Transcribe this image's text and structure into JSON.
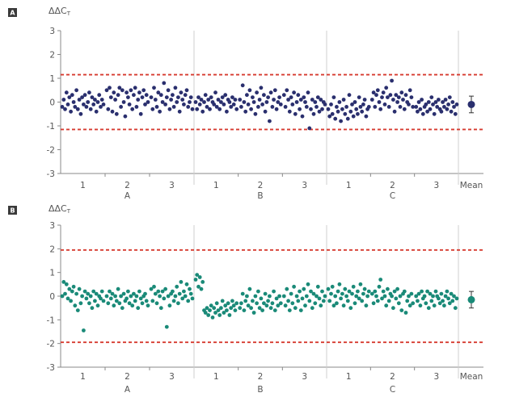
{
  "chart_data": [
    {
      "type": "scatter",
      "panel_label": "A",
      "ylabel": "ΔΔCT",
      "ylabel_main": "ΔΔC",
      "ylabel_sub": "T",
      "ylim": [
        -3,
        3
      ],
      "yticks": [
        -3,
        -2,
        -1,
        0,
        1,
        2,
        3
      ],
      "threshold_lines": [
        1.15,
        -1.15
      ],
      "groups": [
        "A",
        "B",
        "C"
      ],
      "subgroups": [
        "1",
        "2",
        "3"
      ],
      "mean_label": "Mean",
      "mean": {
        "value": -0.1,
        "error": 0.35
      },
      "color": "#2a2f6e",
      "threshold_color": "#d63a2f",
      "series_values": [
        [
          -0.2,
          0.1,
          -0.3,
          0.4,
          -0.1,
          0.2,
          -0.4,
          0.3,
          0.0,
          -0.2,
          0.5,
          -0.3,
          0.1,
          -0.5,
          0.2,
          -0.1,
          0.3,
          -0.2,
          0.0,
          0.4,
          -0.3,
          0.2,
          -0.1,
          0.1,
          -0.4,
          0.0,
          0.3,
          -0.2,
          0.1,
          -0.1
        ],
        [
          0.5,
          -0.3,
          0.6,
          0.2,
          -0.4,
          0.4,
          0.1,
          -0.5,
          0.3,
          0.6,
          -0.2,
          0.5,
          0.0,
          -0.6,
          0.4,
          0.2,
          -0.1,
          0.5,
          -0.3,
          0.3,
          0.6,
          -0.2,
          0.1,
          0.4,
          -0.5,
          0.2,
          0.5,
          -0.1,
          0.3,
          0.0
        ],
        [
          0.2,
          -0.3,
          0.6,
          0.1,
          -0.2,
          0.4,
          -0.4,
          0.3,
          0.0,
          0.8,
          -0.1,
          0.2,
          0.5,
          -0.3,
          0.1,
          0.3,
          -0.2,
          0.6,
          0.0,
          0.2,
          -0.4,
          0.4,
          0.1,
          -0.1,
          0.3,
          0.5,
          -0.2,
          0.0,
          0.2,
          -0.3
        ],
        [
          0.0,
          -0.3,
          0.2,
          -0.1,
          0.1,
          -0.4,
          0.0,
          0.3,
          -0.2,
          0.1,
          -0.3,
          0.2,
          0.0,
          -0.1,
          0.4,
          -0.2,
          0.1,
          -0.3,
          0.0,
          0.2,
          -0.1,
          0.3,
          -0.4,
          0.1,
          0.0,
          -0.2,
          0.2,
          -0.1,
          0.1,
          -0.3
        ],
        [
          0.1,
          -0.2,
          0.7,
          0.0,
          -0.4,
          0.3,
          -0.1,
          0.5,
          -0.3,
          0.2,
          0.0,
          -0.5,
          0.4,
          -0.2,
          0.1,
          0.6,
          -0.1,
          0.3,
          -0.4,
          0.0,
          0.2,
          -0.8,
          0.4,
          -0.2,
          0.1,
          0.5,
          -0.3,
          0.0,
          0.2,
          -0.1
        ],
        [
          0.3,
          -0.2,
          0.5,
          0.1,
          -0.4,
          0.2,
          -0.1,
          0.4,
          -0.5,
          0.0,
          0.3,
          -0.3,
          0.1,
          -0.6,
          0.2,
          0.0,
          -0.2,
          0.4,
          -1.1,
          -0.3,
          0.1,
          -0.5,
          0.0,
          -0.2,
          0.2,
          -0.4,
          0.1,
          -0.3,
          0.0,
          -0.1
        ],
        [
          -0.3,
          -0.6,
          -0.1,
          -0.5,
          0.2,
          -0.7,
          -0.2,
          -0.4,
          0.0,
          -0.8,
          -0.3,
          0.1,
          -0.5,
          -0.2,
          -0.7,
          0.3,
          -0.4,
          -0.1,
          -0.6,
          0.0,
          -0.3,
          -0.5,
          0.2,
          -0.2,
          -0.4,
          -0.1,
          0.1,
          -0.6,
          -0.3,
          -0.2
        ],
        [
          0.1,
          0.4,
          -0.2,
          0.3,
          0.5,
          0.0,
          -0.3,
          0.2,
          0.4,
          -0.1,
          0.6,
          0.2,
          -0.2,
          0.3,
          0.9,
          0.1,
          -0.4,
          0.3,
          0.0,
          0.2,
          -0.2,
          0.4,
          0.1,
          -0.3,
          0.3,
          0.0,
          -0.1,
          0.5,
          0.2,
          -0.2
        ],
        [
          -0.2,
          -0.4,
          0.0,
          -0.3,
          0.1,
          -0.5,
          -0.2,
          -0.1,
          -0.4,
          0.0,
          -0.3,
          0.2,
          -0.1,
          -0.5,
          0.0,
          -0.2,
          0.1,
          -0.3,
          -0.4,
          0.0,
          -0.2,
          0.1,
          -0.3,
          -0.1,
          0.2,
          -0.4,
          0.0,
          -0.2,
          -0.5,
          -0.1
        ]
      ]
    },
    {
      "type": "scatter",
      "panel_label": "B",
      "ylabel": "ΔΔCT",
      "ylabel_main": "ΔΔC",
      "ylabel_sub": "T",
      "ylim": [
        -3,
        3
      ],
      "yticks": [
        -3,
        -2,
        -1,
        0,
        1,
        2,
        3
      ],
      "threshold_lines": [
        1.95,
        -1.95
      ],
      "groups": [
        "A",
        "B",
        "C"
      ],
      "subgroups": [
        "1",
        "2",
        "3"
      ],
      "mean_label": "Mean",
      "mean": {
        "value": -0.15,
        "error": 0.35
      },
      "color": "#1a8a78",
      "threshold_color": "#d63a2f",
      "series_values": [
        [
          0.0,
          0.6,
          0.1,
          0.5,
          -0.1,
          0.3,
          -0.2,
          0.2,
          0.4,
          -0.4,
          0.1,
          -0.6,
          0.3,
          -0.3,
          0.0,
          -1.45,
          0.2,
          -0.1,
          0.1,
          -0.3,
          0.0,
          -0.5,
          0.2,
          -0.2,
          0.1,
          -0.4,
          0.0,
          -0.1,
          0.2,
          -0.2
        ],
        [
          0.0,
          -0.3,
          0.2,
          -0.1,
          0.1,
          -0.4,
          0.0,
          -0.2,
          0.3,
          -0.3,
          0.0,
          -0.5,
          0.1,
          -0.2,
          -0.1,
          0.2,
          -0.3,
          0.0,
          -0.4,
          0.1,
          -0.2,
          0.0,
          -0.5,
          0.2,
          -0.1,
          -0.3,
          0.0,
          0.1,
          -0.2,
          -0.4
        ],
        [
          0.3,
          -0.2,
          0.4,
          0.1,
          -0.3,
          0.2,
          0.0,
          -0.5,
          0.2,
          -0.1,
          0.3,
          -1.3,
          0.0,
          -0.4,
          0.1,
          0.2,
          -0.2,
          0.0,
          0.4,
          -0.3,
          0.1,
          0.6,
          -0.1,
          0.2,
          0.0,
          0.5,
          -0.2,
          0.3,
          0.1,
          -0.1
        ],
        [
          0.7,
          0.9,
          0.4,
          0.8,
          0.3,
          0.6,
          -0.6,
          -0.7,
          -0.5,
          -0.8,
          -0.6,
          -0.4,
          -0.9,
          -0.5,
          -0.7,
          -0.3,
          -0.6,
          -0.8,
          -0.5,
          -0.2,
          -0.7,
          -0.4,
          -0.6,
          -0.3,
          -0.8,
          -0.5,
          -0.2,
          -0.4,
          -0.6,
          -0.3
        ],
        [
          -0.5,
          -0.3,
          0.1,
          -0.6,
          -0.2,
          0.0,
          -0.4,
          0.3,
          -0.5,
          -0.2,
          -0.7,
          0.0,
          -0.3,
          0.2,
          -0.5,
          -0.1,
          -0.6,
          -0.3,
          0.1,
          -0.4,
          -0.2,
          0.0,
          -0.5,
          -0.3,
          0.2,
          -0.6,
          -0.1,
          -0.4,
          0.0,
          -0.3
        ],
        [
          0.0,
          -0.4,
          0.3,
          -0.2,
          -0.6,
          0.1,
          -0.3,
          0.4,
          -0.5,
          0.0,
          -0.2,
          0.2,
          -0.6,
          -0.1,
          0.3,
          -0.4,
          0.0,
          0.5,
          -0.2,
          0.2,
          -0.5,
          0.1,
          -0.3,
          0.0,
          0.4,
          -0.1,
          -0.4,
          0.2,
          -0.2,
          0.0
        ],
        [
          0.3,
          -0.2,
          0.1,
          0.4,
          -0.4,
          0.0,
          -0.3,
          0.2,
          0.5,
          -0.1,
          0.1,
          -0.4,
          0.3,
          0.0,
          -0.2,
          0.2,
          -0.5,
          0.1,
          0.4,
          -0.3,
          0.0,
          0.2,
          -0.1,
          0.5,
          -0.2,
          0.1,
          0.3,
          -0.4,
          0.0,
          0.2
        ],
        [
          0.1,
          -0.3,
          0.2,
          0.0,
          -0.2,
          0.4,
          0.7,
          -0.1,
          0.2,
          0.0,
          -0.4,
          0.3,
          -0.2,
          0.1,
          0.0,
          -0.5,
          0.2,
          -0.1,
          0.3,
          -0.3,
          0.0,
          -0.6,
          0.1,
          0.2,
          -0.7,
          -0.2,
          0.0,
          -0.4,
          0.1,
          -0.3
        ],
        [
          0.0,
          -0.2,
          0.1,
          -0.4,
          0.2,
          -0.1,
          0.0,
          -0.3,
          0.2,
          -0.5,
          0.1,
          -0.2,
          0.0,
          -0.4,
          0.2,
          0.0,
          -0.1,
          -0.3,
          0.1,
          -0.2,
          -0.4,
          0.0,
          0.2,
          -0.1,
          -0.3,
          0.1,
          -0.2,
          0.0,
          -0.5,
          -0.1
        ]
      ]
    }
  ]
}
